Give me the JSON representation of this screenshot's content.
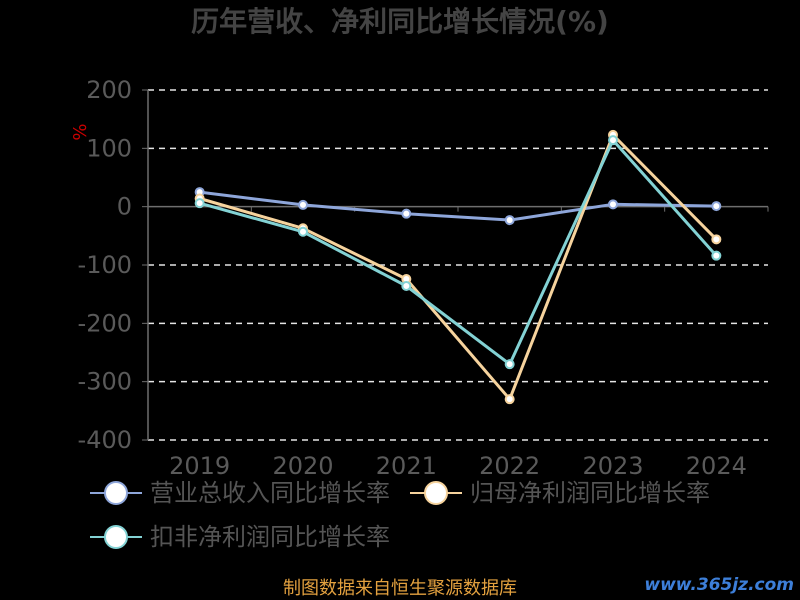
{
  "footer": "制图数据来自恒生聚源数据库",
  "watermark": "www.365jz.com",
  "colors": {
    "background": "#000000",
    "title": "#444444",
    "axis_text": "#5a5a5a",
    "grid": "#e6e6e6",
    "axis_line": "#6e6e6e",
    "ylabel": "#cc0000",
    "footer": "#e3a13f"
  },
  "chart_data": {
    "type": "line",
    "title": "历年营收、净利同比增长情况(%)",
    "xlabel": "",
    "ylabel": "%",
    "categories": [
      "2019",
      "2020",
      "2021",
      "2022",
      "2023",
      "2024"
    ],
    "ylim": [
      -400,
      200
    ],
    "yticks": [
      200,
      100,
      0,
      -100,
      -200,
      -300,
      -400
    ],
    "grid": true,
    "legend_position": "bottom",
    "series": [
      {
        "name": "营业总收入同比增长率",
        "color": "#8ea6da",
        "values": [
          25,
          3,
          -12,
          -23,
          4,
          1
        ]
      },
      {
        "name": "归母净利润同比增长率",
        "color": "#f6d39d",
        "values": [
          14,
          -37,
          -124,
          -330,
          123,
          -56
        ]
      },
      {
        "name": "扣非净利润同比增长率",
        "color": "#83d2d4",
        "values": [
          6,
          -43,
          -136,
          -270,
          114,
          -84
        ]
      }
    ]
  }
}
